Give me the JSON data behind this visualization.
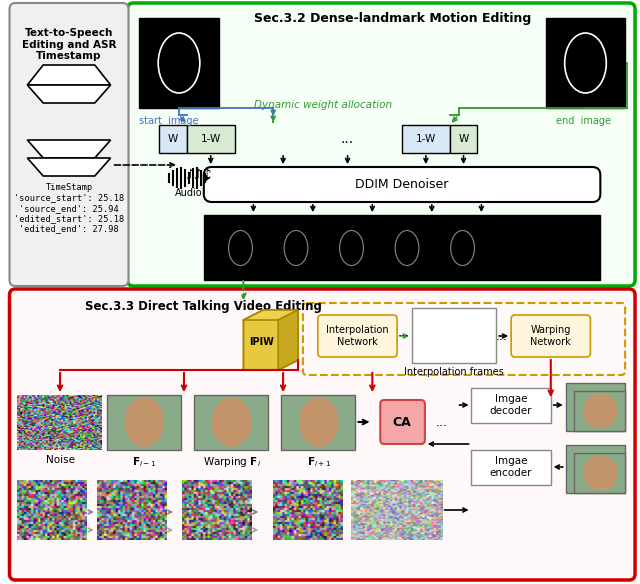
{
  "title_top": "Sec.3.2 Dense-landmark Motion Editing",
  "title_bottom": "Sec.3.3 Direct Talking Video Editing",
  "left_box_title": "Text-to-Speech\nEditing and ASR\nTimestamp",
  "timestamp_text": "TimeStamp\n'source_start': 25.18\n'source_end': 25.94\n'edited_start': 25.18\n'edited_end': 27.98",
  "audio_label": "Audio",
  "ddim_label": "DDIM Denoiser",
  "dynamic_weight_label": "Dynamic weight allocation",
  "start_image_label": "start  image",
  "end_image_label": "end  image",
  "ipiw_label": "IPIW",
  "interp_label": "Interpolation\nNetwork",
  "interp_frames_label": "Interpolation frames",
  "warp_label": "Warping\nNetwork",
  "ca_label": "CA",
  "imgae_decoder_label": "Imgae\ndecoder",
  "imgae_encoder_label": "Imgae\nencoder",
  "noise_label": "Noise",
  "fi_minus_label": "$\\mathbf{F}_{i-1}$",
  "warping_label": "Warping $\\mathbf{F}_i$",
  "fi_plus_label": "$\\mathbf{F}_{i+1}$",
  "green_border": "#00aa00",
  "red_border": "#cc0000",
  "blue_color": "#4472c4",
  "green_color": "#339933",
  "gold_color": "#cc9900",
  "pink_color": "#f4a7a7",
  "light_blue": "#d9e8f7",
  "light_green": "#d9ead3",
  "light_gray": "#f0f0f0",
  "bg_color": "#ffffff"
}
